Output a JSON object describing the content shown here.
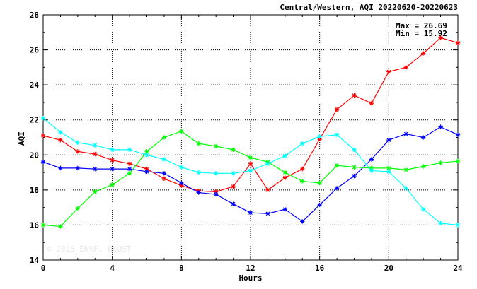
{
  "chart_data": {
    "type": "line",
    "title": "Central/Western, AQI 20220620-20220623",
    "xlabel": "Hours",
    "ylabel": "AQI",
    "xlim": [
      0,
      24
    ],
    "ylim": [
      14,
      28
    ],
    "xticks": [
      0,
      4,
      8,
      12,
      16,
      20,
      24
    ],
    "yticks": [
      14,
      16,
      18,
      20,
      22,
      24,
      26,
      28
    ],
    "grid": true,
    "stats": {
      "max_label": "Max = 26.69",
      "min_label": "Min = 15.92"
    },
    "watermark": "© 2025 ENVF, HKUST",
    "x": [
      0,
      1,
      2,
      3,
      4,
      5,
      6,
      7,
      8,
      9,
      10,
      11,
      12,
      13,
      14,
      15,
      16,
      17,
      18,
      19,
      20,
      21,
      22,
      23,
      24
    ],
    "series": [
      {
        "color": "#ff0000",
        "values": [
          21.1,
          20.85,
          20.2,
          20.05,
          19.7,
          19.5,
          19.2,
          18.65,
          18.25,
          17.95,
          17.9,
          18.2,
          19.5,
          18.0,
          18.7,
          19.2,
          20.9,
          22.6,
          23.4,
          22.95,
          24.75,
          25.0,
          25.8,
          26.69,
          26.4
        ]
      },
      {
        "color": "#0000ff",
        "values": [
          19.6,
          19.25,
          19.25,
          19.2,
          19.2,
          19.2,
          19.05,
          18.95,
          18.4,
          17.85,
          17.75,
          17.2,
          16.7,
          16.65,
          16.9,
          16.2,
          17.15,
          18.1,
          18.8,
          19.75,
          20.85,
          21.2,
          21.0,
          21.6,
          21.15
        ]
      },
      {
        "color": "#00ff00",
        "values": [
          16.0,
          15.92,
          16.95,
          17.9,
          18.3,
          18.95,
          20.2,
          21.0,
          21.35,
          20.65,
          20.5,
          20.3,
          19.85,
          19.6,
          19.0,
          18.5,
          18.4,
          19.4,
          19.3,
          19.25,
          19.25,
          19.15,
          19.35,
          19.55,
          19.65
        ]
      },
      {
        "color": "#00ffff",
        "values": [
          22.1,
          21.3,
          20.7,
          20.55,
          20.3,
          20.3,
          20.0,
          19.75,
          19.3,
          19.0,
          18.95,
          18.95,
          19.1,
          19.5,
          19.95,
          20.65,
          21.05,
          21.15,
          20.3,
          19.1,
          19.05,
          18.1,
          16.9,
          16.1,
          16.0
        ]
      }
    ]
  }
}
